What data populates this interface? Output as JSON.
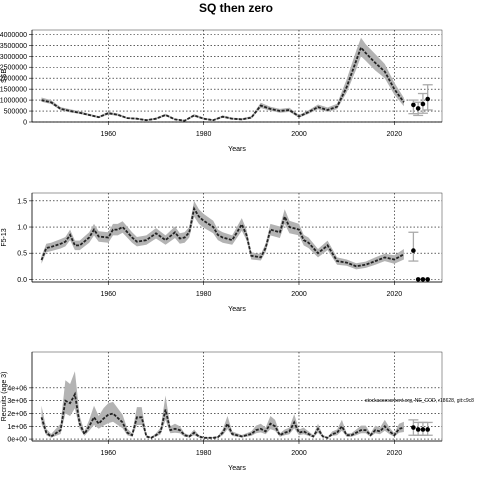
{
  "title": "SQ then zero",
  "annotation": "stockassessment.org, NE_COD, r18628, git:c9c8",
  "colors": {
    "band": "#b3b3b3",
    "line": "#222222",
    "errorbar": "#aaaaaa",
    "grid": "#000000"
  },
  "chart_data": [
    {
      "type": "line",
      "xlabel": "Years",
      "ylabel": "SSB",
      "xlim": [
        1944,
        2030
      ],
      "ylim": [
        0,
        4200000
      ],
      "xticks": [
        1960,
        1980,
        2000,
        2020
      ],
      "yticks": [
        0,
        500000,
        1000000,
        1500000,
        2000000,
        2500000,
        3000000,
        3500000,
        4000000
      ],
      "ytick_labels": [
        "0",
        "500000",
        "1000000",
        "1500000",
        "2000000",
        "2500000",
        "3000000",
        "3500000",
        "4000000"
      ],
      "grid": true,
      "years": [
        1946,
        1948,
        1950,
        1952,
        1954,
        1956,
        1958,
        1960,
        1962,
        1964,
        1966,
        1968,
        1970,
        1972,
        1974,
        1976,
        1978,
        1980,
        1982,
        1984,
        1986,
        1988,
        1990,
        1992,
        1994,
        1996,
        1998,
        2000,
        2002,
        2004,
        2006,
        2008,
        2010,
        2012,
        2013,
        2014,
        2016,
        2018,
        2020,
        2022
      ],
      "values": [
        1000000,
        900000,
        600000,
        500000,
        420000,
        320000,
        220000,
        400000,
        330000,
        180000,
        150000,
        80000,
        150000,
        320000,
        120000,
        60000,
        300000,
        150000,
        80000,
        240000,
        150000,
        120000,
        200000,
        750000,
        600000,
        500000,
        550000,
        250000,
        450000,
        680000,
        550000,
        700000,
        1600000,
        2800000,
        3400000,
        3150000,
        2700000,
        2300000,
        1500000,
        900000
      ],
      "lower": [
        920000,
        820000,
        540000,
        440000,
        370000,
        280000,
        180000,
        340000,
        280000,
        140000,
        110000,
        50000,
        110000,
        270000,
        90000,
        30000,
        240000,
        110000,
        50000,
        190000,
        110000,
        80000,
        150000,
        640000,
        510000,
        420000,
        460000,
        190000,
        370000,
        580000,
        460000,
        590000,
        1350000,
        2400000,
        3000000,
        2800000,
        2350000,
        2000000,
        1250000,
        720000
      ],
      "upper": [
        1120000,
        1000000,
        680000,
        580000,
        490000,
        380000,
        270000,
        470000,
        390000,
        220000,
        190000,
        120000,
        200000,
        380000,
        160000,
        90000,
        360000,
        200000,
        120000,
        300000,
        200000,
        170000,
        260000,
        880000,
        700000,
        600000,
        650000,
        320000,
        540000,
        800000,
        660000,
        830000,
        1950000,
        3250000,
        3850000,
        3550000,
        3100000,
        2650000,
        1800000,
        1100000
      ],
      "projection_points": [
        {
          "x": 2024,
          "y": 780000,
          "lo": 380000,
          "hi": 1000000
        },
        {
          "x": 2025,
          "y": 620000,
          "lo": 300000,
          "hi": 900000
        },
        {
          "x": 2026,
          "y": 820000,
          "lo": 400000,
          "hi": 1300000
        },
        {
          "x": 2027,
          "y": 1050000,
          "lo": 550000,
          "hi": 1700000
        }
      ]
    },
    {
      "type": "line",
      "xlabel": "Years",
      "ylabel": "F5-13",
      "xlim": [
        1944,
        2030
      ],
      "ylim": [
        -0.05,
        1.65
      ],
      "xticks": [
        1960,
        1980,
        2000,
        2020
      ],
      "yticks": [
        0.0,
        0.5,
        1.0,
        1.5
      ],
      "ytick_labels": [
        "0.0",
        "0.5",
        "1.0",
        "1.5"
      ],
      "grid": true,
      "years": [
        1946,
        1947,
        1948,
        1950,
        1951,
        1952,
        1953,
        1954,
        1956,
        1957,
        1958,
        1960,
        1961,
        1962,
        1963,
        1965,
        1966,
        1968,
        1970,
        1972,
        1974,
        1975,
        1976,
        1977,
        1978,
        1979,
        1980,
        1982,
        1983,
        1984,
        1986,
        1988,
        1989,
        1990,
        1992,
        1993,
        1994,
        1996,
        1997,
        1998,
        2000,
        2001,
        2002,
        2004,
        2006,
        2008,
        2010,
        2012,
        2014,
        2016,
        2018,
        2020,
        2022
      ],
      "values": [
        0.37,
        0.6,
        0.62,
        0.68,
        0.72,
        0.85,
        0.65,
        0.65,
        0.8,
        0.95,
        0.82,
        0.8,
        0.95,
        0.95,
        1.0,
        0.8,
        0.72,
        0.75,
        0.88,
        0.75,
        0.9,
        0.78,
        0.8,
        0.9,
        1.35,
        1.2,
        1.12,
        1.0,
        0.85,
        0.8,
        0.75,
        1.05,
        0.85,
        0.45,
        0.42,
        0.6,
        0.95,
        0.9,
        1.2,
        1.0,
        0.95,
        0.75,
        0.7,
        0.5,
        0.65,
        0.35,
        0.32,
        0.25,
        0.28,
        0.35,
        0.42,
        0.38,
        0.48
      ],
      "lower": [
        0.3,
        0.52,
        0.54,
        0.59,
        0.63,
        0.75,
        0.56,
        0.56,
        0.7,
        0.84,
        0.72,
        0.7,
        0.84,
        0.84,
        0.89,
        0.7,
        0.63,
        0.66,
        0.78,
        0.66,
        0.79,
        0.68,
        0.7,
        0.8,
        1.2,
        1.06,
        0.99,
        0.88,
        0.75,
        0.7,
        0.66,
        0.93,
        0.75,
        0.38,
        0.36,
        0.52,
        0.84,
        0.79,
        1.06,
        0.88,
        0.84,
        0.65,
        0.6,
        0.42,
        0.56,
        0.28,
        0.26,
        0.19,
        0.22,
        0.28,
        0.35,
        0.3,
        0.38
      ],
      "upper": [
        0.44,
        0.68,
        0.7,
        0.77,
        0.81,
        0.95,
        0.74,
        0.74,
        0.9,
        1.06,
        0.92,
        0.9,
        1.06,
        1.06,
        1.11,
        0.9,
        0.81,
        0.84,
        0.98,
        0.84,
        1.01,
        0.88,
        0.9,
        1.0,
        1.5,
        1.34,
        1.25,
        1.12,
        0.95,
        0.9,
        0.84,
        1.17,
        0.95,
        0.52,
        0.48,
        0.68,
        1.06,
        1.01,
        1.34,
        1.12,
        1.06,
        0.85,
        0.8,
        0.58,
        0.74,
        0.42,
        0.38,
        0.31,
        0.34,
        0.42,
        0.49,
        0.46,
        0.58
      ],
      "projection_points": [
        {
          "x": 2024,
          "y": 0.55,
          "lo": 0.35,
          "hi": 0.9
        },
        {
          "x": 2025,
          "y": 0.0,
          "lo": 0.0,
          "hi": 0.0
        },
        {
          "x": 2026,
          "y": 0.0,
          "lo": 0.0,
          "hi": 0.0
        },
        {
          "x": 2027,
          "y": 0.0,
          "lo": 0.0,
          "hi": 0.0
        }
      ]
    },
    {
      "type": "line",
      "xlabel": "Years",
      "ylabel": "Recruits (age 3)",
      "xlim": [
        1944,
        2030
      ],
      "ylim": [
        -150000,
        6800000
      ],
      "xticks": [
        1960,
        1980,
        2000,
        2020
      ],
      "yticks": [
        0,
        1000000,
        2000000,
        3000000,
        4000000
      ],
      "ytick_labels": [
        "0e+00",
        "1e+06",
        "2e+06",
        "3e+06",
        "4e+06"
      ],
      "grid": true,
      "years": [
        1946,
        1947,
        1948,
        1950,
        1951,
        1952,
        1953,
        1954,
        1955,
        1956,
        1957,
        1958,
        1959,
        1960,
        1961,
        1963,
        1964,
        1965,
        1966,
        1967,
        1968,
        1969,
        1970,
        1971,
        1972,
        1973,
        1974,
        1975,
        1976,
        1977,
        1978,
        1979,
        1980,
        1982,
        1983,
        1984,
        1985,
        1986,
        1987,
        1988,
        1990,
        1991,
        1992,
        1993,
        1994,
        1995,
        1996,
        1997,
        1998,
        1999,
        2000,
        2001,
        2002,
        2003,
        2004,
        2005,
        2006,
        2007,
        2008,
        2009,
        2010,
        2011,
        2012,
        2013,
        2014,
        2015,
        2016,
        2017,
        2018,
        2019,
        2020,
        2021,
        2022
      ],
      "values": [
        1700000,
        500000,
        200000,
        700000,
        3000000,
        2800000,
        3500000,
        1200000,
        400000,
        1000000,
        1700000,
        1200000,
        1600000,
        1900000,
        2000000,
        1300000,
        500000,
        300000,
        1700000,
        1700000,
        200000,
        100000,
        300000,
        600000,
        2300000,
        700000,
        800000,
        700000,
        300000,
        200000,
        500000,
        200000,
        100000,
        100000,
        150000,
        500000,
        1200000,
        400000,
        300000,
        200000,
        400000,
        700000,
        800000,
        600000,
        1200000,
        1000000,
        300000,
        500000,
        600000,
        1300000,
        500000,
        600000,
        400000,
        200000,
        800000,
        200000,
        100000,
        400000,
        500000,
        1000000,
        300000,
        300000,
        500000,
        700000,
        700000,
        300000,
        700000,
        600000,
        1000000,
        600000,
        300000,
        800000,
        900000
      ],
      "lower": [
        1200000,
        300000,
        100000,
        400000,
        2000000,
        1800000,
        2400000,
        800000,
        250000,
        650000,
        1100000,
        800000,
        1050000,
        1250000,
        1350000,
        850000,
        300000,
        180000,
        1100000,
        1100000,
        120000,
        60000,
        180000,
        380000,
        1500000,
        450000,
        500000,
        450000,
        180000,
        120000,
        300000,
        120000,
        60000,
        60000,
        90000,
        300000,
        780000,
        250000,
        180000,
        120000,
        250000,
        450000,
        520000,
        380000,
        780000,
        650000,
        180000,
        300000,
        380000,
        850000,
        300000,
        380000,
        250000,
        120000,
        500000,
        120000,
        60000,
        250000,
        300000,
        650000,
        180000,
        180000,
        300000,
        450000,
        450000,
        180000,
        450000,
        380000,
        650000,
        380000,
        180000,
        500000,
        550000
      ],
      "upper": [
        2600000,
        800000,
        400000,
        1200000,
        4600000,
        4300000,
        5300000,
        1800000,
        600000,
        1500000,
        2600000,
        1800000,
        2400000,
        2800000,
        2900000,
        1900000,
        800000,
        450000,
        2500000,
        2500000,
        320000,
        160000,
        450000,
        900000,
        3400000,
        1000000,
        1200000,
        1000000,
        450000,
        320000,
        750000,
        320000,
        160000,
        160000,
        230000,
        750000,
        1800000,
        600000,
        450000,
        320000,
        600000,
        1050000,
        1200000,
        900000,
        1800000,
        1500000,
        450000,
        750000,
        900000,
        1950000,
        750000,
        900000,
        600000,
        320000,
        1200000,
        320000,
        160000,
        600000,
        750000,
        1500000,
        450000,
        450000,
        750000,
        1050000,
        1050000,
        450000,
        1050000,
        900000,
        1500000,
        900000,
        450000,
        1200000,
        1350000
      ],
      "projection_points": [
        {
          "x": 2024,
          "y": 900000,
          "lo": 300000,
          "hi": 1500000
        },
        {
          "x": 2025,
          "y": 750000,
          "lo": 300000,
          "hi": 1300000
        },
        {
          "x": 2026,
          "y": 750000,
          "lo": 300000,
          "hi": 1300000
        },
        {
          "x": 2027,
          "y": 750000,
          "lo": 300000,
          "hi": 1300000
        }
      ]
    }
  ]
}
